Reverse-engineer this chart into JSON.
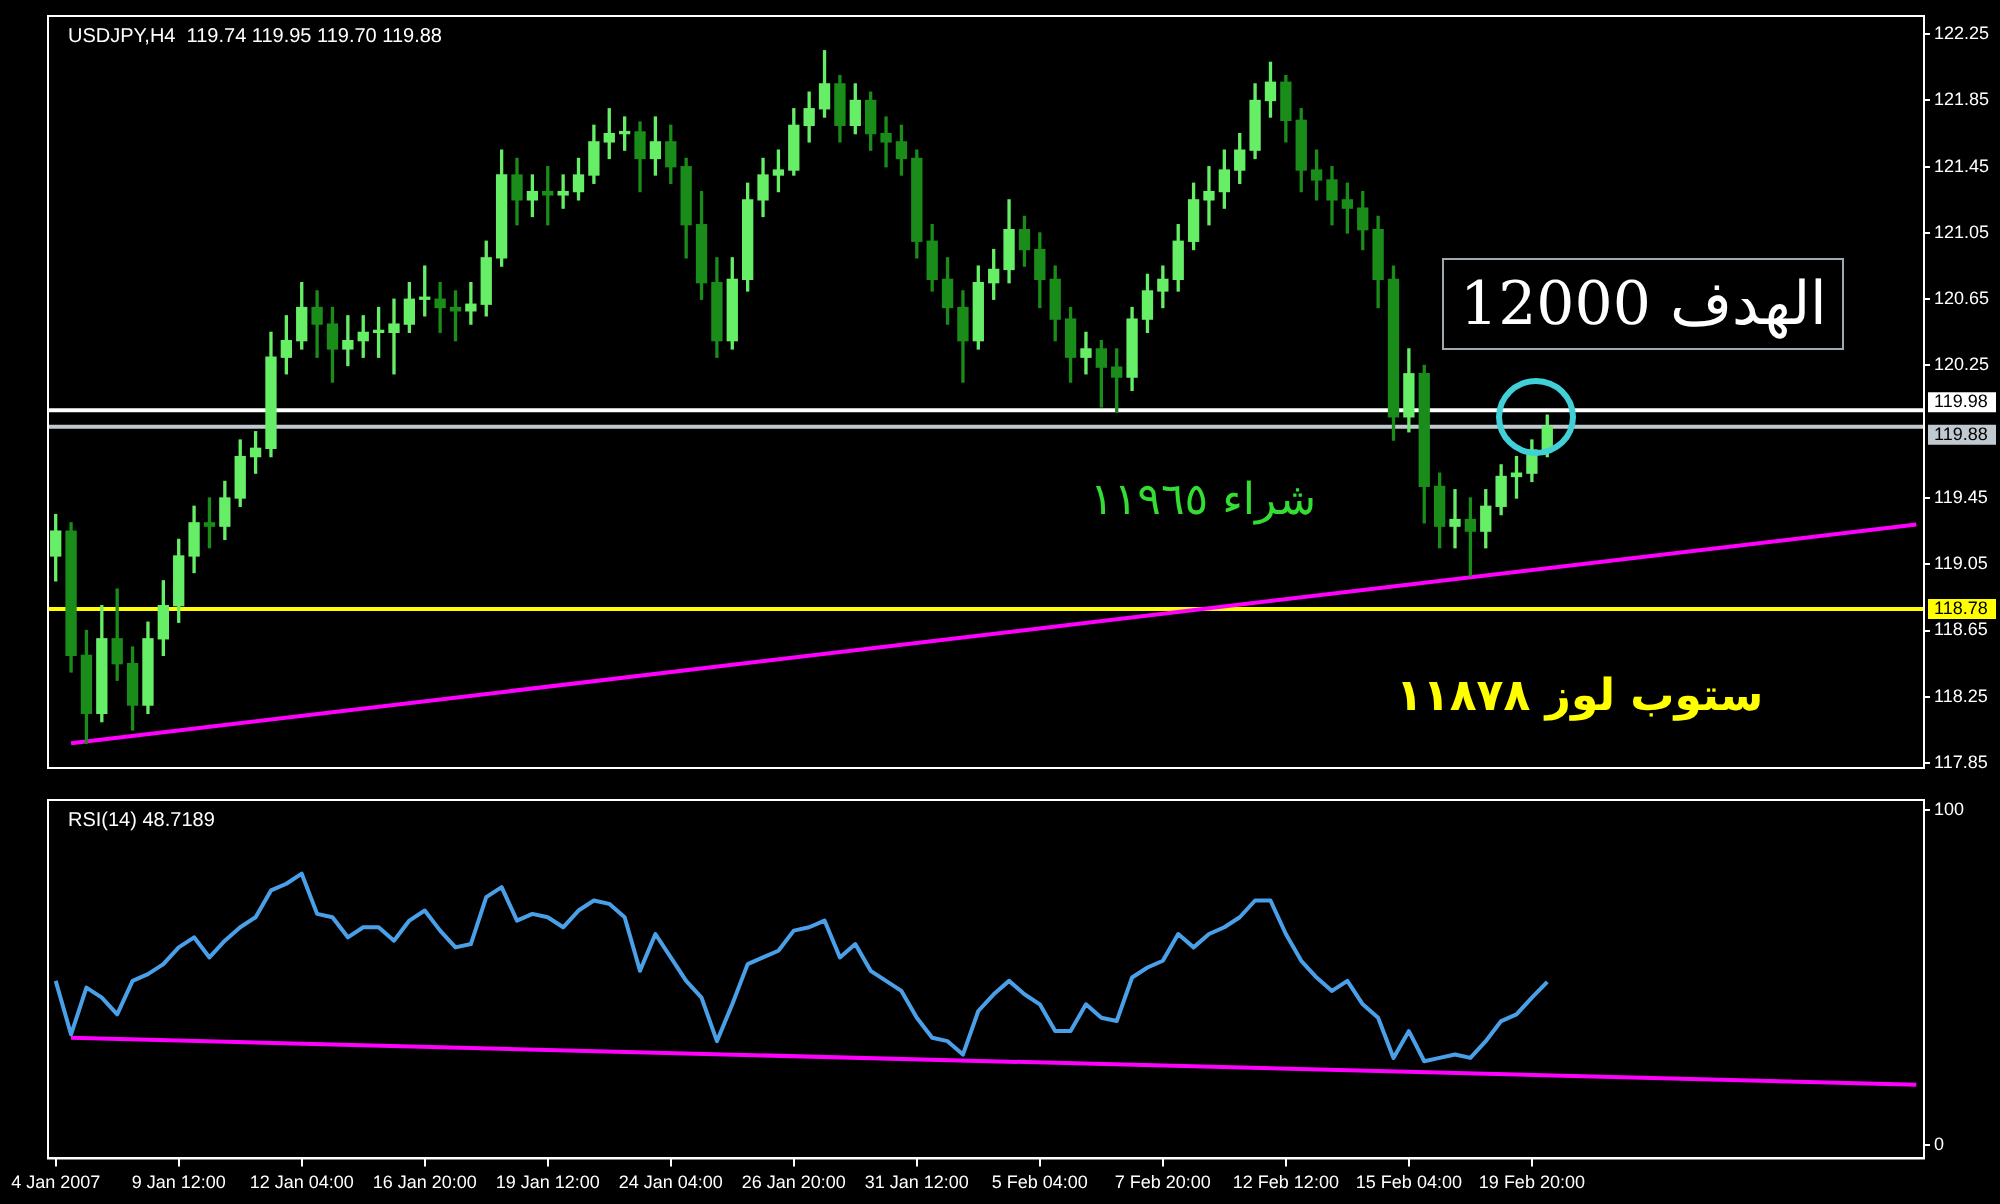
{
  "chart_data": [
    {
      "type": "candlestick",
      "title": "USDJPY,H4  119.74 119.95 119.70 119.88",
      "colors": [
        "#66ee66",
        "#1a8c1a",
        "#1a8c1a",
        "#66ee66",
        "#1a8c1a",
        "#1a8c1a",
        "#66ee66",
        "#66ee66",
        "#66ee66",
        "#66ee66",
        "#1a8c1a",
        "#66ee66",
        "#66ee66",
        "#66ee66",
        "#66ee66",
        "#66ee66",
        "#66ee66",
        "#1a8c1a",
        "#1a8c1a",
        "#66ee66",
        "#66ee66",
        "#66ee66",
        "#66ee66",
        "#66ee66",
        "#66ee66",
        "#1a8c1a",
        "#1a8c1a",
        "#66ee66",
        "#66ee66",
        "#66ee66",
        "#1a8c1a",
        "#66ee66",
        "#1a8c1a",
        "#66ee66",
        "#66ee66",
        "#66ee66",
        "#66ee66",
        "#66ee66",
        "#1a8c1a",
        "#66ee66",
        "#1a8c1a",
        "#1a8c1a",
        "#1a8c1a",
        "#1a8c1a",
        "#66ee66",
        "#66ee66",
        "#66ee66",
        "#66ee66",
        "#66ee66",
        "#66ee66",
        "#66ee66",
        "#1a8c1a",
        "#66ee66",
        "#1a8c1a",
        "#1a8c1a",
        "#1a8c1a",
        "#1a8c1a",
        "#1a8c1a",
        "#1a8c1a",
        "#1a8c1a",
        "#66ee66",
        "#66ee66",
        "#66ee66",
        "#1a8c1a",
        "#1a8c1a",
        "#1a8c1a",
        "#1a8c1a",
        "#66ee66",
        "#1a8c1a",
        "#1a8c1a",
        "#66ee66",
        "#66ee66",
        "#66ee66",
        "#66ee66",
        "#66ee66",
        "#66ee66",
        "#66ee66",
        "#66ee66",
        "#66ee66",
        "#66ee66",
        "#1a8c1a",
        "#1a8c1a",
        "#1a8c1a",
        "#1a8c1a",
        "#1a8c1a",
        "#1a8c1a",
        "#1a8c1a",
        "#1a8c1a",
        "#66ee66",
        "#1a8c1a",
        "#1a8c1a",
        "#66ee66",
        "#1a8c1a",
        "#66ee66",
        "#66ee66",
        "#66ee66",
        "#66ee66",
        "#66ee66",
        null,
        null,
        null,
        null,
        null,
        null,
        null,
        null,
        null,
        null,
        null,
        null,
        null,
        null,
        null,
        null,
        null,
        null,
        null,
        null,
        null,
        null,
        null,
        null
      ],
      "categories": [
        null,
        null,
        null,
        null,
        null,
        null,
        null,
        null,
        null,
        null,
        null,
        null,
        null,
        null,
        null,
        null,
        null,
        null,
        null,
        null,
        null,
        null,
        null,
        null,
        null,
        null,
        null,
        null,
        null,
        null,
        null,
        null,
        null,
        null,
        null,
        null,
        null,
        null,
        null,
        null,
        null,
        null,
        null,
        null,
        null,
        null,
        null,
        null,
        null,
        null,
        null,
        null,
        null,
        null,
        null,
        null,
        null,
        null,
        null,
        null,
        null,
        null,
        null,
        null,
        null,
        null,
        null,
        null,
        null,
        null,
        null,
        null,
        null,
        null,
        null,
        null,
        null,
        null,
        null,
        null,
        null,
        null,
        null,
        null,
        null,
        null,
        null,
        null,
        null,
        null,
        null,
        null,
        null,
        null,
        null,
        null,
        null,
        null,
        null,
        null,
        null,
        null,
        null,
        null,
        null,
        null,
        null,
        null,
        null,
        null,
        null,
        null,
        null,
        null,
        null,
        null,
        null,
        null,
        null,
        null,
        null,
        null
      ],
      "ohlc": [
        [
          119.1,
          119.35,
          118.95,
          119.25
        ],
        [
          119.25,
          119.3,
          118.4,
          118.5
        ],
        [
          118.5,
          118.65,
          117.97,
          118.15
        ],
        [
          118.15,
          118.8,
          118.1,
          118.6
        ],
        [
          118.6,
          118.9,
          118.35,
          118.45
        ],
        [
          118.45,
          118.55,
          118.05,
          118.2
        ],
        [
          118.2,
          118.7,
          118.15,
          118.6
        ],
        [
          118.6,
          118.95,
          118.5,
          118.8
        ],
        [
          118.8,
          119.2,
          118.7,
          119.1
        ],
        [
          119.1,
          119.4,
          119.0,
          119.3
        ],
        [
          119.3,
          119.45,
          119.15,
          119.28
        ],
        [
          119.28,
          119.55,
          119.2,
          119.45
        ],
        [
          119.45,
          119.8,
          119.4,
          119.7
        ],
        [
          119.7,
          119.85,
          119.6,
          119.75
        ],
        [
          119.75,
          120.45,
          119.7,
          120.3
        ],
        [
          120.3,
          120.55,
          120.2,
          120.4
        ],
        [
          120.4,
          120.75,
          120.35,
          120.6
        ],
        [
          120.6,
          120.7,
          120.3,
          120.5
        ],
        [
          120.5,
          120.6,
          120.15,
          120.35
        ],
        [
          120.35,
          120.55,
          120.25,
          120.4
        ],
        [
          120.4,
          120.55,
          120.3,
          120.45
        ],
        [
          120.45,
          120.6,
          120.3,
          120.45
        ],
        [
          120.45,
          120.65,
          120.2,
          120.5
        ],
        [
          120.5,
          120.75,
          120.45,
          120.65
        ],
        [
          120.65,
          120.85,
          120.55,
          120.65
        ],
        [
          120.65,
          120.75,
          120.45,
          120.6
        ],
        [
          120.6,
          120.7,
          120.4,
          120.58
        ],
        [
          120.58,
          120.75,
          120.5,
          120.62
        ],
        [
          120.62,
          121.0,
          120.55,
          120.9
        ],
        [
          120.9,
          121.55,
          120.85,
          121.4
        ],
        [
          121.4,
          121.5,
          121.1,
          121.25
        ],
        [
          121.25,
          121.4,
          121.15,
          121.3
        ],
        [
          121.3,
          121.45,
          121.1,
          121.28
        ],
        [
          121.28,
          121.4,
          121.2,
          121.3
        ],
        [
          121.3,
          121.5,
          121.25,
          121.4
        ],
        [
          121.4,
          121.7,
          121.35,
          121.6
        ],
        [
          121.6,
          121.8,
          121.5,
          121.65
        ],
        [
          121.65,
          121.75,
          121.55,
          121.66
        ],
        [
          121.66,
          121.72,
          121.3,
          121.5
        ],
        [
          121.5,
          121.75,
          121.4,
          121.6
        ],
        [
          121.6,
          121.7,
          121.35,
          121.45
        ],
        [
          121.45,
          121.5,
          120.9,
          121.1
        ],
        [
          121.1,
          121.3,
          120.65,
          120.75
        ],
        [
          120.75,
          120.9,
          120.3,
          120.4
        ],
        [
          120.4,
          120.9,
          120.35,
          120.77
        ],
        [
          120.77,
          121.35,
          120.7,
          121.25
        ],
        [
          121.25,
          121.5,
          121.15,
          121.4
        ],
        [
          121.4,
          121.55,
          121.3,
          121.43
        ],
        [
          121.43,
          121.8,
          121.4,
          121.7
        ],
        [
          121.7,
          121.9,
          121.6,
          121.8
        ],
        [
          121.8,
          122.15,
          121.75,
          121.95
        ],
        [
          121.95,
          122.0,
          121.6,
          121.7
        ],
        [
          121.7,
          121.95,
          121.65,
          121.85
        ],
        [
          121.85,
          121.9,
          121.55,
          121.65
        ],
        [
          121.65,
          121.75,
          121.45,
          121.6
        ],
        [
          121.6,
          121.7,
          121.4,
          121.5
        ],
        [
          121.5,
          121.55,
          120.9,
          121.0
        ],
        [
          121.0,
          121.1,
          120.7,
          120.77
        ],
        [
          120.77,
          120.9,
          120.5,
          120.6
        ],
        [
          120.6,
          120.7,
          120.15,
          120.4
        ],
        [
          120.4,
          120.85,
          120.35,
          120.75
        ],
        [
          120.75,
          120.95,
          120.65,
          120.83
        ],
        [
          120.83,
          121.25,
          120.75,
          121.07
        ],
        [
          121.07,
          121.15,
          120.85,
          120.95
        ],
        [
          120.95,
          121.05,
          120.6,
          120.77
        ],
        [
          120.77,
          120.85,
          120.4,
          120.53
        ],
        [
          120.53,
          120.6,
          120.15,
          120.3
        ],
        [
          120.3,
          120.45,
          120.2,
          120.35
        ],
        [
          120.35,
          120.4,
          120.0,
          120.24
        ],
        [
          120.24,
          120.35,
          119.97,
          120.18
        ],
        [
          120.18,
          120.6,
          120.1,
          120.53
        ],
        [
          120.53,
          120.8,
          120.45,
          120.7
        ],
        [
          120.7,
          120.85,
          120.6,
          120.77
        ],
        [
          120.77,
          121.1,
          120.7,
          121.0
        ],
        [
          121.0,
          121.35,
          120.95,
          121.25
        ],
        [
          121.25,
          121.45,
          121.1,
          121.3
        ],
        [
          121.3,
          121.55,
          121.2,
          121.43
        ],
        [
          121.43,
          121.65,
          121.35,
          121.55
        ],
        [
          121.55,
          121.95,
          121.5,
          121.85
        ],
        [
          121.85,
          122.08,
          121.75,
          121.96
        ],
        [
          121.96,
          122.0,
          121.6,
          121.73
        ],
        [
          121.73,
          121.8,
          121.3,
          121.43
        ],
        [
          121.43,
          121.55,
          121.25,
          121.37
        ],
        [
          121.37,
          121.45,
          121.1,
          121.25
        ],
        [
          121.25,
          121.35,
          121.05,
          121.2
        ],
        [
          121.2,
          121.3,
          120.95,
          121.07
        ],
        [
          121.07,
          121.15,
          120.6,
          120.77
        ],
        [
          120.77,
          120.85,
          119.8,
          119.94
        ],
        [
          119.94,
          120.35,
          119.85,
          120.2
        ],
        [
          120.2,
          120.25,
          119.3,
          119.52
        ],
        [
          119.52,
          119.6,
          119.15,
          119.28
        ],
        [
          119.28,
          119.5,
          119.15,
          119.32
        ],
        [
          119.32,
          119.45,
          118.98,
          119.25
        ],
        [
          119.25,
          119.5,
          119.15,
          119.4
        ],
        [
          119.4,
          119.65,
          119.35,
          119.58
        ],
        [
          119.58,
          119.7,
          119.45,
          119.6
        ],
        [
          119.6,
          119.8,
          119.55,
          119.74
        ],
        [
          119.74,
          119.95,
          119.7,
          119.88
        ],
        null,
        null,
        null,
        null,
        null,
        null,
        null,
        null,
        null,
        null,
        null,
        null,
        null,
        null,
        null,
        null,
        null,
        null,
        null,
        null,
        null,
        null,
        null,
        null
      ],
      "series": [
        {
          "type": "line",
          "color": "#ff00ff",
          "values": [
            null,
            117.97,
            null,
            null,
            null,
            null,
            null,
            null,
            null,
            null,
            null,
            null,
            null,
            null,
            null,
            null,
            null,
            null,
            null,
            null,
            null,
            null,
            null,
            null,
            null,
            null,
            null,
            null,
            null,
            null,
            null,
            null,
            null,
            null,
            null,
            null,
            null,
            null,
            null,
            null,
            null,
            null,
            null,
            null,
            null,
            null,
            null,
            null,
            null,
            null,
            null,
            null,
            null,
            null,
            null,
            null,
            null,
            null,
            null,
            null,
            null,
            null,
            null,
            null,
            null,
            null,
            null,
            null,
            null,
            null,
            null,
            null,
            null,
            null,
            null,
            null,
            null,
            null,
            null,
            null,
            null,
            null,
            null,
            null,
            null,
            null,
            null,
            null,
            null,
            null,
            null,
            null,
            null,
            null,
            null,
            null,
            null,
            null,
            null,
            null,
            null,
            null,
            null,
            null,
            null,
            null,
            null,
            null,
            null,
            null,
            null,
            null,
            null,
            null,
            null,
            null,
            null,
            null,
            null,
            null,
            null,
            119.29
          ]
        }
      ],
      "ref_lines": [
        {
          "axis": "y",
          "value": 119.98,
          "label": "119.98",
          "color": "#ffffff"
        },
        {
          "axis": "y",
          "value": 119.88,
          "label": "119.88",
          "color": "#c0c8d0"
        },
        {
          "axis": "y",
          "value": 118.78,
          "label": "118.78",
          "color": "#ffff00"
        }
      ],
      "annotations": [
        "الهدف 12000",
        "شراء ١١٩٦٥",
        "ستوب لوز ١١٨٧٨"
      ],
      "ylim": [
        117.82,
        122.36
      ],
      "yticks": [
        117.85,
        118.25,
        118.65,
        119.05,
        119.45,
        120.25,
        120.65,
        121.05,
        121.45,
        121.85,
        122.25
      ],
      "tick_labels": "y"
    },
    {
      "type": "line",
      "title": "RSI(14) 48.7189",
      "categories": [
        "4 Jan 2007",
        null,
        null,
        null,
        null,
        null,
        null,
        null,
        "9 Jan 12:00",
        null,
        null,
        null,
        null,
        null,
        null,
        null,
        "12 Jan 04:00",
        null,
        null,
        null,
        null,
        null,
        null,
        null,
        "16 Jan 20:00",
        null,
        null,
        null,
        null,
        null,
        null,
        null,
        "19 Jan 12:00",
        null,
        null,
        null,
        null,
        null,
        null,
        null,
        "24 Jan 04:00",
        null,
        null,
        null,
        null,
        null,
        null,
        null,
        "26 Jan 20:00",
        null,
        null,
        null,
        null,
        null,
        null,
        null,
        "31 Jan 12:00",
        null,
        null,
        null,
        null,
        null,
        null,
        null,
        "5 Feb 04:00",
        null,
        null,
        null,
        null,
        null,
        null,
        null,
        "7 Feb 20:00",
        null,
        null,
        null,
        null,
        null,
        null,
        null,
        "12 Feb 12:00",
        null,
        null,
        null,
        null,
        null,
        null,
        null,
        "15 Feb 04:00",
        null,
        null,
        null,
        null,
        null,
        null,
        null,
        "19 Feb 20:00",
        null,
        null,
        null,
        null,
        null,
        null,
        null,
        null,
        null,
        null,
        null,
        null,
        null,
        null,
        null,
        null,
        null,
        null,
        null,
        null,
        null,
        null,
        null,
        null,
        null
      ],
      "series": [
        {
          "color": "#4aa0e8",
          "values": [
            49,
            33,
            47,
            44,
            39,
            49,
            51,
            54,
            59,
            62,
            56,
            61,
            65,
            68,
            76,
            78,
            81,
            69,
            68,
            62,
            65,
            65,
            61,
            67,
            70,
            64,
            59,
            60,
            74,
            77,
            67,
            69,
            68,
            65,
            70,
            73,
            72,
            68,
            52,
            63,
            56,
            49,
            44,
            31,
            42,
            54,
            56,
            58,
            64,
            65,
            67,
            56,
            60,
            52,
            49,
            46,
            38,
            32,
            31,
            27,
            40,
            45,
            49,
            45,
            42,
            34,
            34,
            42,
            38,
            37,
            50,
            53,
            55,
            63,
            59,
            63,
            65,
            68,
            73,
            73,
            63,
            55,
            50,
            46,
            49,
            42,
            38,
            26,
            34,
            25,
            26,
            27,
            26,
            31,
            37,
            39,
            44,
            48.7,
            null,
            null,
            null,
            null,
            null,
            null,
            null,
            null,
            null,
            null,
            null,
            null,
            null,
            null,
            null,
            null,
            null,
            null,
            null,
            null,
            null,
            null,
            null,
            null
          ]
        },
        {
          "color": "#ff00ff",
          "values": [
            null,
            32,
            null,
            null,
            null,
            null,
            null,
            null,
            null,
            null,
            null,
            null,
            null,
            null,
            null,
            null,
            null,
            null,
            null,
            null,
            null,
            null,
            null,
            null,
            null,
            null,
            null,
            null,
            null,
            null,
            null,
            null,
            null,
            null,
            null,
            null,
            null,
            null,
            null,
            null,
            null,
            null,
            null,
            null,
            null,
            null,
            null,
            null,
            null,
            null,
            null,
            null,
            null,
            null,
            null,
            null,
            null,
            null,
            null,
            null,
            null,
            null,
            null,
            null,
            null,
            null,
            null,
            null,
            null,
            null,
            null,
            null,
            null,
            null,
            null,
            null,
            null,
            null,
            null,
            null,
            null,
            null,
            null,
            null,
            null,
            null,
            null,
            null,
            null,
            null,
            null,
            null,
            null,
            null,
            null,
            null,
            null,
            null,
            null,
            null,
            null,
            null,
            null,
            null,
            null,
            null,
            null,
            null,
            null,
            null,
            null,
            null,
            null,
            null,
            null,
            null,
            null,
            null,
            null,
            null,
            null,
            18
          ]
        }
      ],
      "ylim": [
        -4,
        103
      ],
      "yticks": [
        0,
        100
      ]
    }
  ]
}
